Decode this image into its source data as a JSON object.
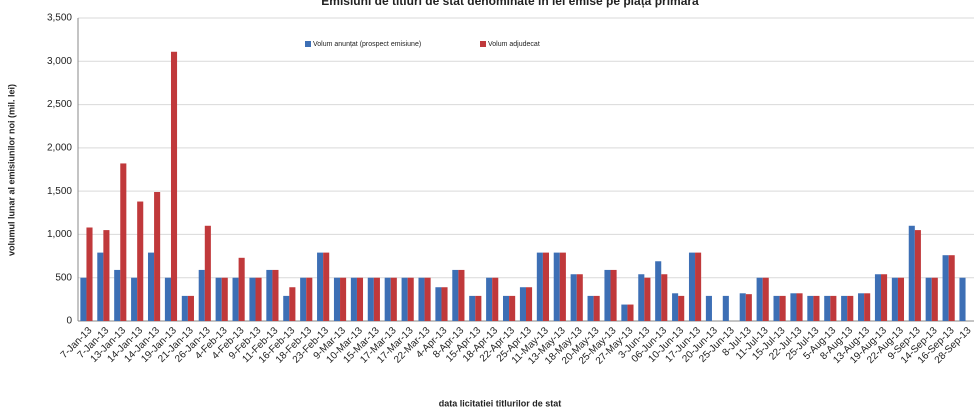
{
  "chart_data": {
    "type": "bar",
    "title": "Emisiuni de titluri de stat denominate în lei emise pe piața primară",
    "x_label": "data  licitatiei  titlurilor de stat",
    "y_label": "volumul lunar al emisiunilor noi (mil. lei)",
    "categories": [
      "7-Jan-13",
      "7-Jan-13",
      "13-Jan-13",
      "14-Jan-13",
      "14-Jan-13",
      "19-Jan-13",
      "21-Jan-13",
      "26-Jan-13",
      "4-Feb-13",
      "4-Feb-13",
      "9-Feb-13",
      "11-Feb-13",
      "16-Feb-13",
      "18-Feb-13",
      "23-Feb-13",
      "9-Mar-13",
      "10-Mar-13",
      "15-Mar-13",
      "17-Mar-13",
      "17-Mar-13",
      "22-Mar-13",
      "4-Apr-13",
      "8-Apr-13",
      "15-Apr-13",
      "18-Apr-13",
      "22-Apr-13",
      "25-Apr-13",
      "11-May-13",
      "13-May-13",
      "18-May-13",
      "20-May-13",
      "25-May-13",
      "27-May-13",
      "3-Jun-13",
      "06-Jun-13",
      "10-Jun-13",
      "17-Jun-13",
      "20-Jun-13",
      "25-Jun-13",
      "8-Jul-13",
      "11-Jul-13",
      "15-Jul-13",
      "22-Jul-13",
      "25-Jul-13",
      "5-Aug-13",
      "8-Aug-13",
      "13-Aug-13",
      "19-Aug-13",
      "22-Aug-13",
      "9-Sep-13",
      "14-Sep-13",
      "16-Sep-13",
      "28-Sep-13"
    ],
    "series": [
      {
        "name": "Volum anunțat (prospect emisiune)",
        "color": "#3d6fb5",
        "values": [
          500,
          790,
          590,
          500,
          790,
          500,
          290,
          590,
          500,
          500,
          500,
          590,
          290,
          500,
          790,
          500,
          500,
          500,
          500,
          500,
          500,
          390,
          590,
          290,
          500,
          290,
          390,
          790,
          790,
          540,
          290,
          590,
          190,
          540,
          690,
          320,
          790,
          290,
          290,
          320,
          500,
          290,
          320,
          290,
          290,
          290,
          320,
          540,
          500,
          1100,
          500,
          760,
          500
        ]
      },
      {
        "name": "Volum adjudecat",
        "color": "#c0393b",
        "values": [
          1080,
          1050,
          1820,
          1380,
          1490,
          3110,
          290,
          1100,
          500,
          730,
          500,
          590,
          390,
          500,
          790,
          500,
          500,
          500,
          500,
          500,
          500,
          390,
          590,
          290,
          500,
          290,
          390,
          790,
          790,
          540,
          290,
          590,
          190,
          500,
          540,
          290,
          790,
          null,
          null,
          310,
          500,
          290,
          320,
          290,
          290,
          290,
          320,
          540,
          500,
          1050,
          500,
          760,
          null
        ]
      }
    ],
    "ylim": [
      0,
      3500
    ],
    "yticks": [
      0,
      500,
      {
        "value": 1000,
        "label": "1,000"
      },
      {
        "value": 1500,
        "label": "1,500"
      },
      {
        "value": 2000,
        "label": "2,000"
      },
      {
        "value": 2500,
        "label": "2,500"
      },
      {
        "value": 3000,
        "label": "3,000"
      },
      {
        "value": 3500,
        "label": "3,500"
      }
    ],
    "grid": true,
    "legend": "top"
  }
}
